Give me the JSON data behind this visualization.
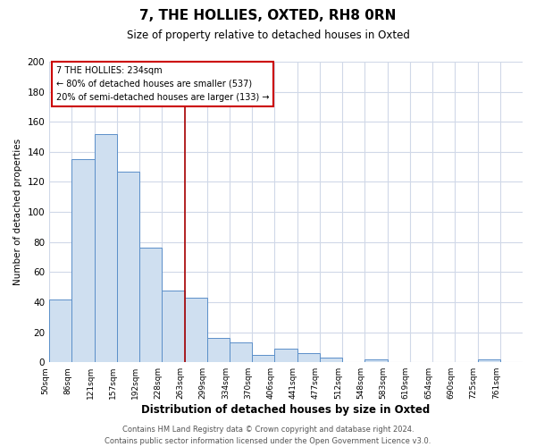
{
  "title": "7, THE HOLLIES, OXTED, RH8 0RN",
  "subtitle": "Size of property relative to detached houses in Oxted",
  "xlabel": "Distribution of detached houses by size in Oxted",
  "ylabel": "Number of detached properties",
  "bin_labels": [
    "50sqm",
    "86sqm",
    "121sqm",
    "157sqm",
    "192sqm",
    "228sqm",
    "263sqm",
    "299sqm",
    "334sqm",
    "370sqm",
    "406sqm",
    "441sqm",
    "477sqm",
    "512sqm",
    "548sqm",
    "583sqm",
    "619sqm",
    "654sqm",
    "690sqm",
    "725sqm",
    "761sqm"
  ],
  "bar_heights": [
    42,
    135,
    152,
    127,
    76,
    48,
    43,
    16,
    13,
    5,
    9,
    6,
    3,
    0,
    2,
    0,
    0,
    0,
    0,
    2,
    0
  ],
  "bar_color": "#cfdff0",
  "bar_edge_color": "#5b8fc9",
  "reference_line_x": 6.0,
  "annotation_title": "7 THE HOLLIES: 234sqm",
  "annotation_line1": "← 80% of detached houses are smaller (537)",
  "annotation_line2": "20% of semi-detached houses are larger (133) →",
  "annotation_box_edge_color": "#cc0000",
  "ylim": [
    0,
    200
  ],
  "yticks": [
    0,
    20,
    40,
    60,
    80,
    100,
    120,
    140,
    160,
    180,
    200
  ],
  "footer_line1": "Contains HM Land Registry data © Crown copyright and database right 2024.",
  "footer_line2": "Contains public sector information licensed under the Open Government Licence v3.0.",
  "background_color": "#ffffff",
  "grid_color": "#d0d8e8"
}
